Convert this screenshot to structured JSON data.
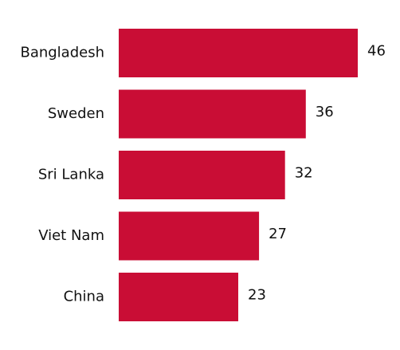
{
  "chart_data": {
    "type": "barh",
    "categories": [
      "Bangladesh",
      "Sweden",
      "Sri Lanka",
      "Viet Nam",
      "China"
    ],
    "values": [
      46,
      36,
      32,
      27,
      23
    ],
    "color": "#c90d35"
  }
}
